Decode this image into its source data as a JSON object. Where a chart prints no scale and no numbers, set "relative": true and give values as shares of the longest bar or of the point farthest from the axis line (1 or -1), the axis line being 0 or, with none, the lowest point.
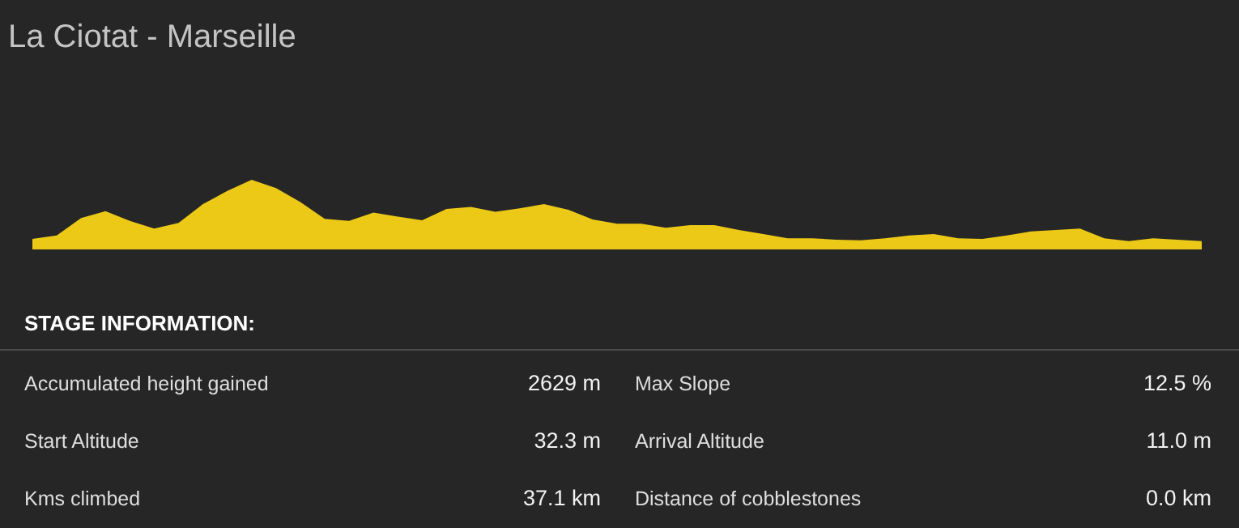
{
  "chart_data": [
    {
      "type": "area",
      "title": "La Ciotat - Marseille",
      "relative": true,
      "categories": [
        null,
        null,
        null,
        null,
        null,
        null,
        null,
        null,
        null,
        null,
        null,
        null,
        null,
        null,
        null,
        null,
        null,
        null,
        null,
        null,
        null,
        null,
        null,
        null,
        null,
        null,
        null,
        null,
        null,
        null,
        null,
        null,
        null,
        null,
        null,
        null,
        null,
        null,
        null,
        null,
        null,
        null,
        null,
        null,
        null,
        null,
        null,
        null,
        null
      ],
      "series": [
        {
          "color": "#edc917",
          "values": [
            0.15,
            0.2,
            0.45,
            0.55,
            0.41,
            0.3,
            0.38,
            0.65,
            0.84,
            1.0,
            0.88,
            0.68,
            0.44,
            0.41,
            0.53,
            0.47,
            0.42,
            0.58,
            0.61,
            0.54,
            0.59,
            0.65,
            0.57,
            0.43,
            0.37,
            0.37,
            0.31,
            0.35,
            0.35,
            0.28,
            0.22,
            0.16,
            0.16,
            0.14,
            0.13,
            0.16,
            0.2,
            0.22,
            0.16,
            0.15,
            0.2,
            0.26,
            0.28,
            0.3,
            0.16,
            0.12,
            0.16,
            0.14,
            0.12
          ]
        }
      ]
    },
    {
      "type": "other",
      "title": "STAGE INFORMATION:",
      "annotations": [
        "Accumulated height gained",
        "2629 m",
        "Max Slope",
        "12.5 %",
        "Start Altitude",
        "32.3 m",
        "Arrival Altitude",
        "11.0 m",
        "Kms climbed",
        "37.1 km",
        "Distance of cobblestones",
        "0.0 km"
      ]
    }
  ]
}
